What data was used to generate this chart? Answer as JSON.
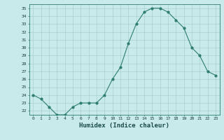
{
  "x": [
    0,
    1,
    2,
    3,
    4,
    5,
    6,
    7,
    8,
    9,
    10,
    11,
    12,
    13,
    14,
    15,
    16,
    17,
    18,
    19,
    20,
    21,
    22,
    23
  ],
  "y": [
    24.0,
    23.5,
    22.5,
    21.5,
    21.5,
    22.5,
    23.0,
    23.0,
    23.0,
    24.0,
    26.0,
    27.5,
    30.5,
    33.0,
    34.5,
    35.0,
    35.0,
    34.5,
    33.5,
    32.5,
    30.0,
    29.0,
    27.0,
    26.5
  ],
  "line_color": "#2e7d6e",
  "marker_color": "#2e7d6e",
  "bg_color": "#c8eaea",
  "grid_color": "#aacfcf",
  "xlabel": "Humidex (Indice chaleur)",
  "xlim": [
    -0.5,
    23.5
  ],
  "ylim": [
    21.5,
    35.5
  ],
  "ytick_min": 22,
  "ytick_max": 35
}
